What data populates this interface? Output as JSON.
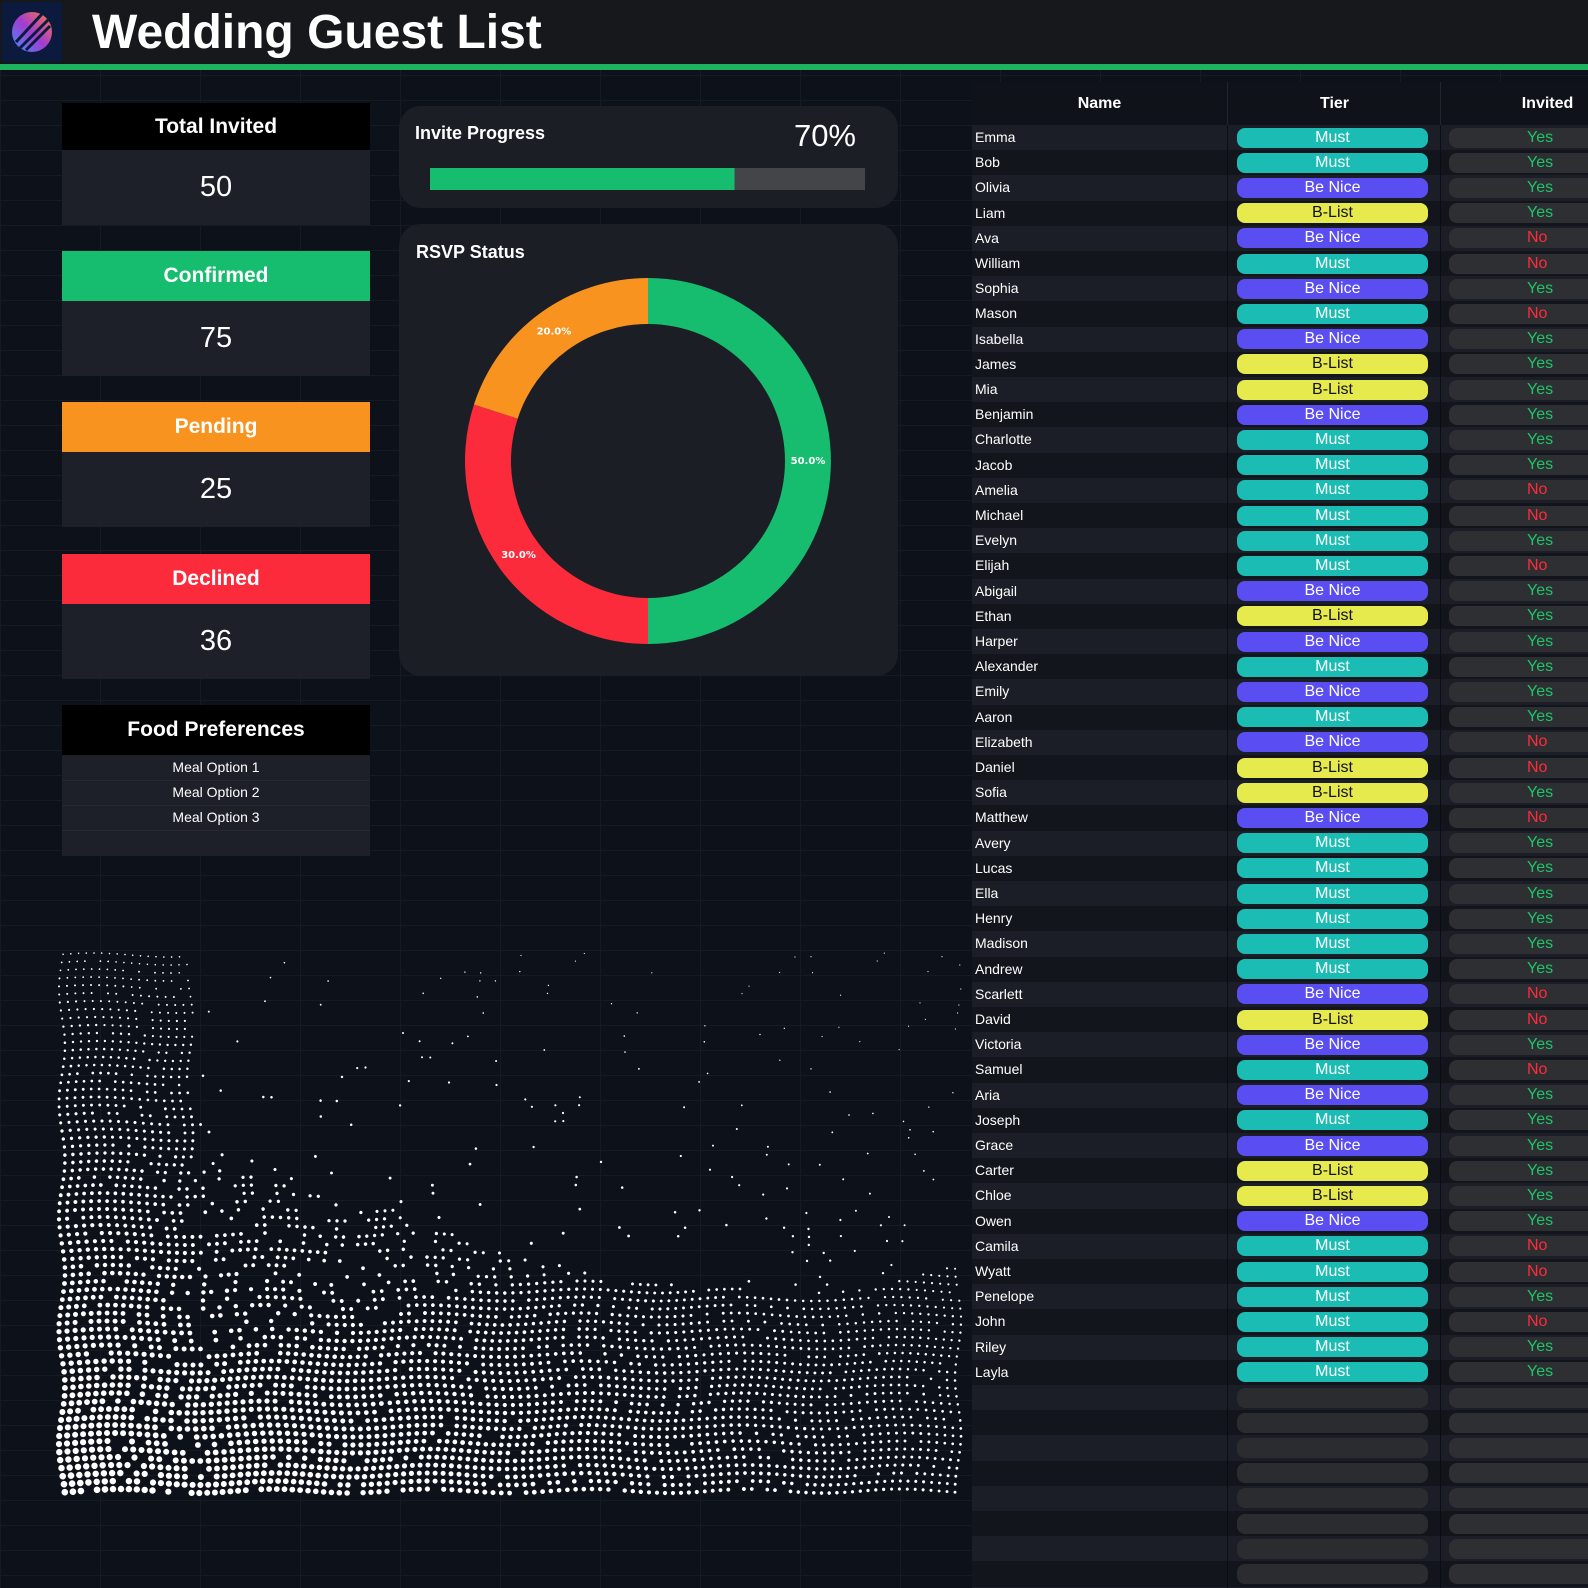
{
  "header": {
    "title": "Wedding Guest List"
  },
  "kpis": [
    {
      "label": "Total Invited",
      "value": 50,
      "color": "#000000",
      "text": "#ffffff"
    },
    {
      "label": "Confirmed",
      "value": 75,
      "color": "#17bd6e",
      "text": "#ffffff"
    },
    {
      "label": "Pending",
      "value": 25,
      "color": "#f7931e",
      "text": "#ffffff"
    },
    {
      "label": "Declined",
      "value": 36,
      "color": "#fb2b3b",
      "text": "#ffffff"
    }
  ],
  "food_preferences": {
    "title": "Food Preferences",
    "options": [
      "Meal Option 1",
      "Meal Option 2",
      "Meal Option 3"
    ]
  },
  "invite_progress": {
    "title": "Invite Progress",
    "value": 70,
    "value_label": "70%",
    "xlim": [
      0,
      100
    ],
    "color": "#17bd6e"
  },
  "chart_data": {
    "type": "pie",
    "title": "RSVP Status",
    "donut": true,
    "values": [
      50,
      30,
      20
    ],
    "value_labels": [
      "50.0%",
      "30.0%",
      "20.0%"
    ],
    "colors": [
      "#17bd6e",
      "#fb2b3b",
      "#f7931e"
    ]
  },
  "table": {
    "columns": [
      "Name",
      "Tier",
      "Invited"
    ],
    "tier_styles": {
      "Must": {
        "fill": "#1bbcb3",
        "text": "#ffffff"
      },
      "Be Nice": {
        "fill": "#5a4ef2",
        "text": "#ffffff"
      },
      "B-List": {
        "fill": "#e7ea4c",
        "text": "#111111"
      }
    },
    "invited_styles": {
      "Yes": "#1ec46a",
      "No": "#ff2b3b"
    },
    "rows": [
      [
        "Emma",
        "Must",
        "Yes"
      ],
      [
        "Bob",
        "Must",
        "Yes"
      ],
      [
        "Olivia",
        "Be Nice",
        "Yes"
      ],
      [
        "Liam",
        "B-List",
        "Yes"
      ],
      [
        "Ava",
        "Be Nice",
        "No"
      ],
      [
        "William",
        "Must",
        "No"
      ],
      [
        "Sophia",
        "Be Nice",
        "Yes"
      ],
      [
        "Mason",
        "Must",
        "No"
      ],
      [
        "Isabella",
        "Be Nice",
        "Yes"
      ],
      [
        "James",
        "B-List",
        "Yes"
      ],
      [
        "Mia",
        "B-List",
        "Yes"
      ],
      [
        "Benjamin",
        "Be Nice",
        "Yes"
      ],
      [
        "Charlotte",
        "Must",
        "Yes"
      ],
      [
        "Jacob",
        "Must",
        "Yes"
      ],
      [
        "Amelia",
        "Must",
        "No"
      ],
      [
        "Michael",
        "Must",
        "No"
      ],
      [
        "Evelyn",
        "Must",
        "Yes"
      ],
      [
        "Elijah",
        "Must",
        "No"
      ],
      [
        "Abigail",
        "Be Nice",
        "Yes"
      ],
      [
        "Ethan",
        "B-List",
        "Yes"
      ],
      [
        "Harper",
        "Be Nice",
        "Yes"
      ],
      [
        "Alexander",
        "Must",
        "Yes"
      ],
      [
        "Emily",
        "Be Nice",
        "Yes"
      ],
      [
        "Aaron",
        "Must",
        "Yes"
      ],
      [
        "Elizabeth",
        "Be Nice",
        "No"
      ],
      [
        "Daniel",
        "B-List",
        "No"
      ],
      [
        "Sofia",
        "B-List",
        "Yes"
      ],
      [
        "Matthew",
        "Be Nice",
        "No"
      ],
      [
        "Avery",
        "Must",
        "Yes"
      ],
      [
        "Lucas",
        "Must",
        "Yes"
      ],
      [
        "Ella",
        "Must",
        "Yes"
      ],
      [
        "Henry",
        "Must",
        "Yes"
      ],
      [
        "Madison",
        "Must",
        "Yes"
      ],
      [
        "Andrew",
        "Must",
        "Yes"
      ],
      [
        "Scarlett",
        "Be Nice",
        "No"
      ],
      [
        "David",
        "B-List",
        "No"
      ],
      [
        "Victoria",
        "Be Nice",
        "Yes"
      ],
      [
        "Samuel",
        "Must",
        "No"
      ],
      [
        "Aria",
        "Be Nice",
        "Yes"
      ],
      [
        "Joseph",
        "Must",
        "Yes"
      ],
      [
        "Grace",
        "Be Nice",
        "Yes"
      ],
      [
        "Carter",
        "B-List",
        "Yes"
      ],
      [
        "Chloe",
        "B-List",
        "Yes"
      ],
      [
        "Owen",
        "Be Nice",
        "Yes"
      ],
      [
        "Camila",
        "Must",
        "No"
      ],
      [
        "Wyatt",
        "Must",
        "No"
      ],
      [
        "Penelope",
        "Must",
        "Yes"
      ],
      [
        "John",
        "Must",
        "No"
      ],
      [
        "Riley",
        "Must",
        "Yes"
      ],
      [
        "Layla",
        "Must",
        "Yes"
      ]
    ]
  }
}
